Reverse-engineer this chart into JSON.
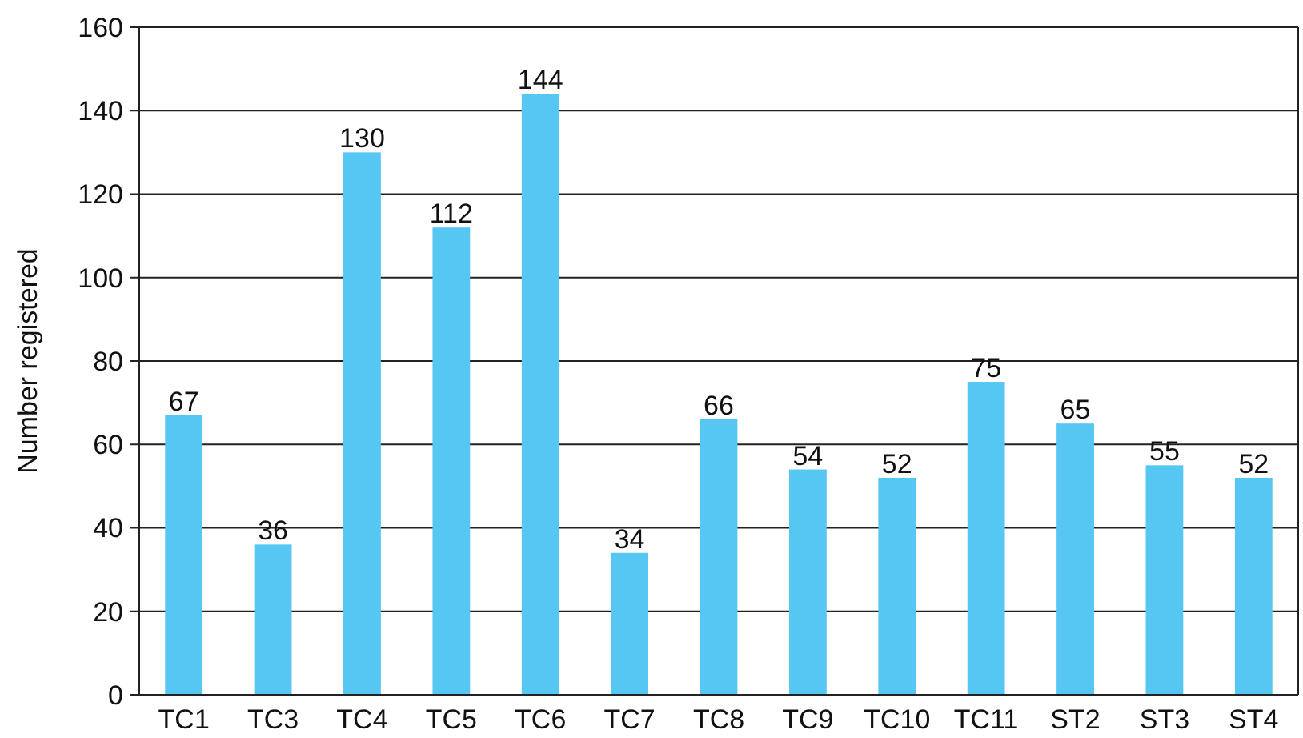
{
  "chart_data": {
    "type": "bar",
    "ylabel": "Number registered",
    "categories": [
      "TC1",
      "TC3",
      "TC4",
      "TC5",
      "TC6",
      "TC7",
      "TC8",
      "TC9",
      "TC10",
      "TC11",
      "ST2",
      "ST3",
      "ST4"
    ],
    "values": [
      67,
      36,
      130,
      112,
      144,
      34,
      66,
      54,
      52,
      75,
      65,
      55,
      52
    ],
    "color": "#56c6f2",
    "ylim": [
      0,
      160
    ],
    "yticks": [
      0,
      20,
      40,
      60,
      80,
      100,
      120,
      140,
      160
    ],
    "grid": "y",
    "data_labels": true
  }
}
